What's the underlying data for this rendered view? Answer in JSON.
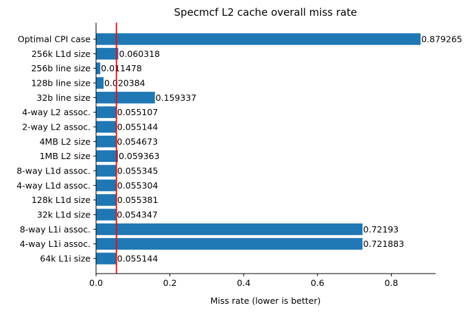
{
  "chart_data": {
    "type": "bar",
    "orientation": "horizontal",
    "title": "Specmcf L2 cache overall miss rate",
    "xlabel": "Miss rate (lower is better)",
    "ylabel": "",
    "xlim": [
      0,
      0.92
    ],
    "xticks": [
      "0.0",
      "0.2",
      "0.4",
      "0.6",
      "0.8"
    ],
    "xtick_values": [
      0,
      0.2,
      0.4,
      0.6,
      0.8
    ],
    "grid": false,
    "reference_line": {
      "value": 0.055144,
      "color": "#ff0000"
    },
    "bar_color": "#1f77b4",
    "categories": [
      "Optimal CPI case",
      "256k L1d size",
      "256b line size",
      "128b line size",
      "32b line size",
      "4-way L2 assoc.",
      "2-way L2 assoc.",
      "4MB L2 size",
      "1MB L2 size",
      "8-way L1d assoc.",
      "4-way L1d assoc.",
      "128k L1d size",
      "32k L1d size",
      "8-way L1i assoc.",
      "4-way L1i assoc.",
      "64k L1i size"
    ],
    "values": [
      0.879265,
      0.060318,
      0.011478,
      0.020384,
      0.159337,
      0.055107,
      0.055144,
      0.054673,
      0.059363,
      0.055345,
      0.055304,
      0.055381,
      0.054347,
      0.72193,
      0.721883,
      0.055144
    ],
    "labels": [
      "0.879265",
      "0.060318",
      "0.011478",
      "0.020384",
      "0.159337",
      "0.055107",
      "0.055144",
      "0.054673",
      "0.059363",
      "0.055345",
      "0.055304",
      "0.055381",
      "0.054347",
      "0.72193",
      "0.721883",
      "0.055144"
    ]
  }
}
